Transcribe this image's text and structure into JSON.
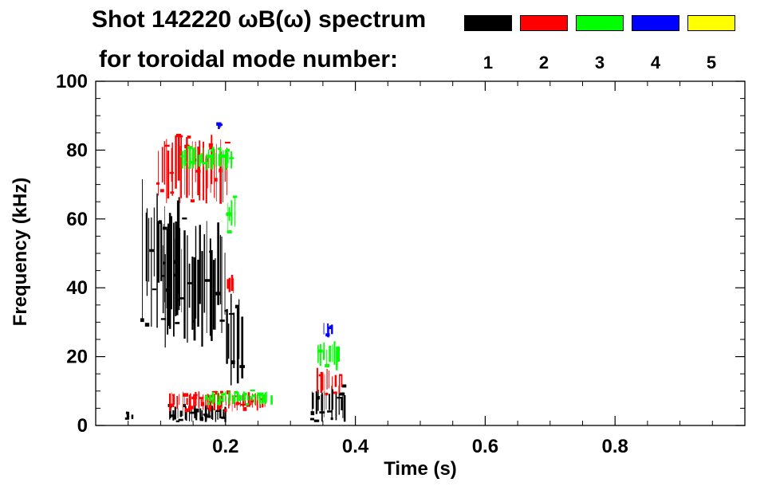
{
  "chart_data": {
    "type": "heatmap",
    "title_line1": "Shot 142220 ωB(ω) spectrum",
    "title_line2": "for toroidal mode number:",
    "xlabel": "Time (s)",
    "ylabel": "Frequency (kHz)",
    "xlim": [
      0.0,
      1.0
    ],
    "ylim": [
      0,
      100
    ],
    "x_ticks": [
      {
        "value": 0.2,
        "label": "0.2"
      },
      {
        "value": 0.4,
        "label": "0.4"
      },
      {
        "value": 0.6,
        "label": "0.6"
      },
      {
        "value": 0.8,
        "label": "0.8"
      }
    ],
    "y_ticks": [
      {
        "value": 0,
        "label": "0"
      },
      {
        "value": 20,
        "label": "20"
      },
      {
        "value": 40,
        "label": "40"
      },
      {
        "value": 60,
        "label": "60"
      },
      {
        "value": 80,
        "label": "80"
      },
      {
        "value": 100,
        "label": "100"
      }
    ],
    "legend": [
      {
        "mode": "1",
        "color": "#000000"
      },
      {
        "mode": "2",
        "color": "#ff0000"
      },
      {
        "mode": "3",
        "color": "#00ff00"
      },
      {
        "mode": "4",
        "color": "#0000ff"
      },
      {
        "mode": "5",
        "color": "#ffff00"
      }
    ],
    "regions": [
      {
        "mode": "1",
        "t": [
          0.07,
          0.13
        ],
        "f": [
          28,
          72
        ]
      },
      {
        "mode": "1",
        "t": [
          0.1,
          0.2
        ],
        "f": [
          22,
          60
        ]
      },
      {
        "mode": "1",
        "t": [
          0.2,
          0.225
        ],
        "f": [
          10,
          40
        ]
      },
      {
        "mode": "1",
        "t": [
          0.11,
          0.2
        ],
        "f": [
          1,
          6
        ]
      },
      {
        "mode": "1",
        "t": [
          0.33,
          0.385
        ],
        "f": [
          1,
          12
        ]
      },
      {
        "mode": "1",
        "t": [
          0.045,
          0.055
        ],
        "f": [
          1,
          4
        ]
      },
      {
        "mode": "2",
        "t": [
          0.095,
          0.205
        ],
        "f": [
          64,
          85
        ]
      },
      {
        "mode": "2",
        "t": [
          0.11,
          0.26
        ],
        "f": [
          4,
          10
        ]
      },
      {
        "mode": "2",
        "t": [
          0.34,
          0.38
        ],
        "f": [
          9,
          17
        ]
      },
      {
        "mode": "2",
        "t": [
          0.2,
          0.215
        ],
        "f": [
          38,
          44
        ]
      },
      {
        "mode": "3",
        "t": [
          0.13,
          0.21
        ],
        "f": [
          74,
          81
        ]
      },
      {
        "mode": "3",
        "t": [
          0.2,
          0.215
        ],
        "f": [
          55,
          68
        ]
      },
      {
        "mode": "3",
        "t": [
          0.17,
          0.27
        ],
        "f": [
          6,
          10
        ]
      },
      {
        "mode": "3",
        "t": [
          0.34,
          0.375
        ],
        "f": [
          16,
          25
        ]
      },
      {
        "mode": "4",
        "t": [
          0.35,
          0.365
        ],
        "f": [
          25,
          30
        ]
      },
      {
        "mode": "4",
        "t": [
          0.185,
          0.195
        ],
        "f": [
          86,
          88
        ]
      }
    ]
  }
}
